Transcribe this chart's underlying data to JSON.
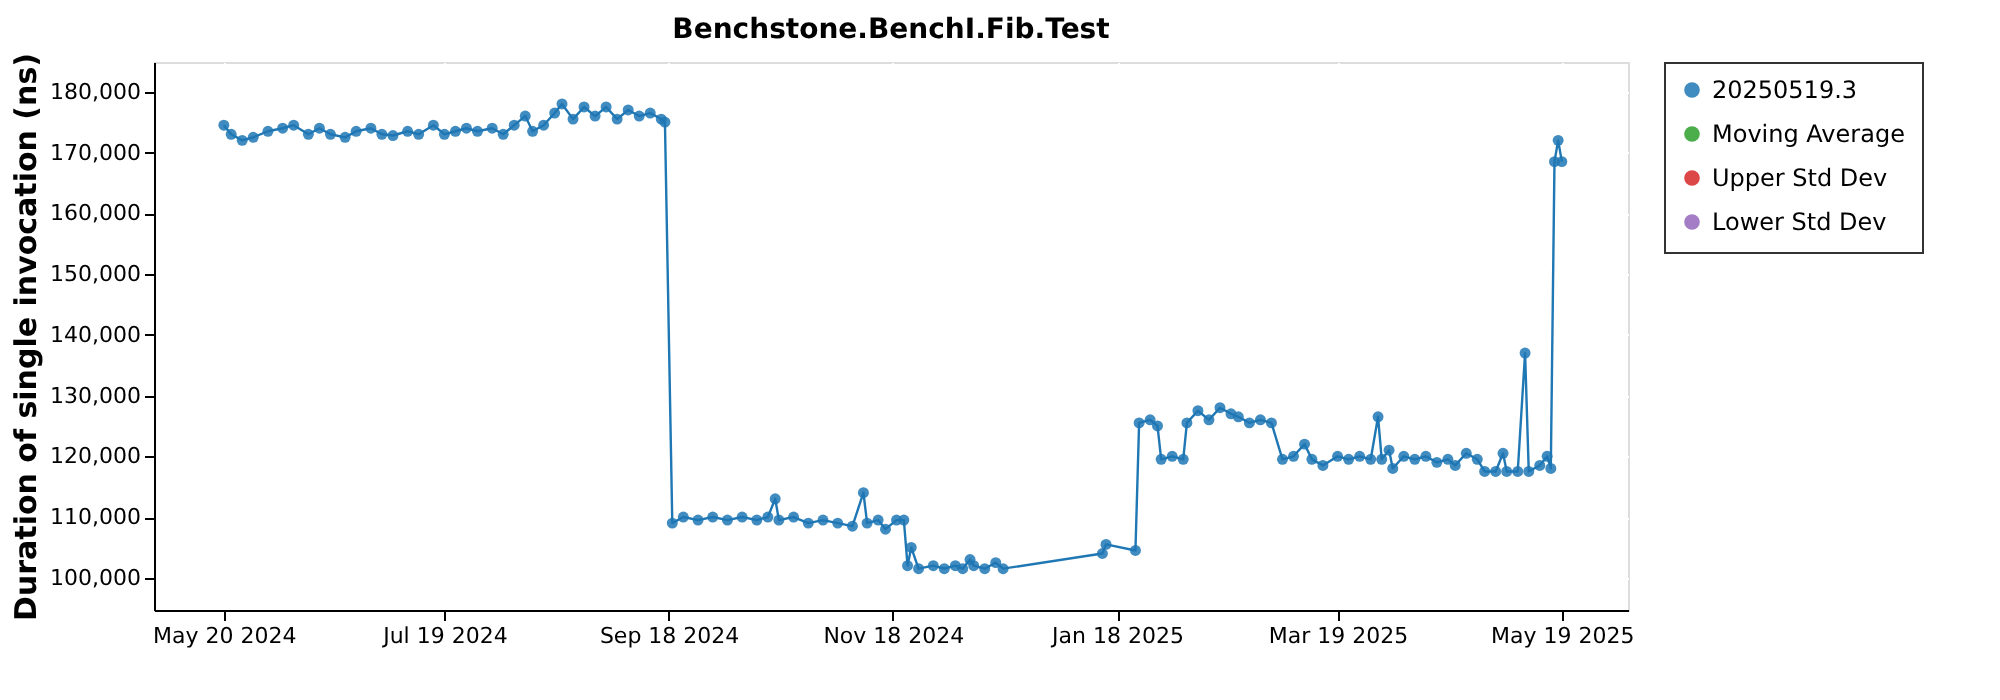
{
  "chart_data": {
    "type": "line",
    "title": "Benchstone.BenchI.Fib.Test",
    "ylabel": "Duration of single invocation (ns)",
    "xlim": [
      "2024-05-01",
      "2025-06-06"
    ],
    "xticks": [
      {
        "value": "2024-05-20",
        "label": "May 20 2024"
      },
      {
        "value": "2024-07-19",
        "label": "Jul 19 2024"
      },
      {
        "value": "2024-09-18",
        "label": "Sep 18 2024"
      },
      {
        "value": "2024-11-18",
        "label": "Nov 18 2024"
      },
      {
        "value": "2025-01-18",
        "label": "Jan 18 2025"
      },
      {
        "value": "2025-03-19",
        "label": "Mar 19 2025"
      },
      {
        "value": "2025-05-19",
        "label": "May 19 2025"
      }
    ],
    "ylim": [
      94700,
      184900
    ],
    "yticks": [
      {
        "value": 100000,
        "label": "100,000"
      },
      {
        "value": 110000,
        "label": "110,000"
      },
      {
        "value": 120000,
        "label": "120,000"
      },
      {
        "value": 130000,
        "label": "130,000"
      },
      {
        "value": 140000,
        "label": "140,000"
      },
      {
        "value": 150000,
        "label": "150,000"
      },
      {
        "value": 160000,
        "label": "160,000"
      },
      {
        "value": 170000,
        "label": "170,000"
      },
      {
        "value": 180000,
        "label": "180,000"
      }
    ],
    "grid": true,
    "legend": "right",
    "marker": "circle",
    "line_style": "solid",
    "series": [
      {
        "name": "20250519.3",
        "color": "#1f77b4",
        "x": [
          "2024-05-20",
          "2024-05-22",
          "2024-05-25",
          "2024-05-28",
          "2024-06-01",
          "2024-06-05",
          "2024-06-08",
          "2024-06-12",
          "2024-06-15",
          "2024-06-18",
          "2024-06-22",
          "2024-06-25",
          "2024-06-29",
          "2024-07-02",
          "2024-07-05",
          "2024-07-09",
          "2024-07-12",
          "2024-07-16",
          "2024-07-19",
          "2024-07-22",
          "2024-07-25",
          "2024-07-28",
          "2024-08-01",
          "2024-08-04",
          "2024-08-07",
          "2024-08-10",
          "2024-08-12",
          "2024-08-15",
          "2024-08-18",
          "2024-08-20",
          "2024-08-23",
          "2024-08-26",
          "2024-08-29",
          "2024-09-01",
          "2024-09-04",
          "2024-09-07",
          "2024-09-10",
          "2024-09-13",
          "2024-09-16",
          "2024-09-17",
          "2024-09-19",
          "2024-09-22",
          "2024-09-26",
          "2024-09-30",
          "2024-10-04",
          "2024-10-08",
          "2024-10-12",
          "2024-10-15",
          "2024-10-17",
          "2024-10-18",
          "2024-10-22",
          "2024-10-26",
          "2024-10-30",
          "2024-11-03",
          "2024-11-07",
          "2024-11-10",
          "2024-11-11",
          "2024-11-14",
          "2024-11-16",
          "2024-11-19",
          "2024-11-21",
          "2024-11-22",
          "2024-11-23",
          "2024-11-25",
          "2024-11-29",
          "2024-12-02",
          "2024-12-05",
          "2024-12-07",
          "2024-12-09",
          "2024-12-10",
          "2024-12-13",
          "2024-12-16",
          "2024-12-18",
          "2025-01-14",
          "2025-01-15",
          "2025-01-23",
          "2025-01-24",
          "2025-01-27",
          "2025-01-29",
          "2025-01-30",
          "2025-02-02",
          "2025-02-05",
          "2025-02-06",
          "2025-02-09",
          "2025-02-12",
          "2025-02-15",
          "2025-02-18",
          "2025-02-20",
          "2025-02-23",
          "2025-02-26",
          "2025-03-01",
          "2025-03-04",
          "2025-03-07",
          "2025-03-10",
          "2025-03-12",
          "2025-03-15",
          "2025-03-19",
          "2025-03-22",
          "2025-03-25",
          "2025-03-28",
          "2025-03-30",
          "2025-03-31",
          "2025-04-02",
          "2025-04-03",
          "2025-04-06",
          "2025-04-09",
          "2025-04-12",
          "2025-04-15",
          "2025-04-18",
          "2025-04-20",
          "2025-04-23",
          "2025-04-26",
          "2025-04-28",
          "2025-05-01",
          "2025-05-03",
          "2025-05-04",
          "2025-05-07",
          "2025-05-09",
          "2025-05-10",
          "2025-05-13",
          "2025-05-15",
          "2025-05-16",
          "2025-05-17",
          "2025-05-18",
          "2025-05-19"
        ],
        "values": [
          174500,
          173000,
          172000,
          172500,
          173500,
          174000,
          174500,
          173000,
          174000,
          173000,
          172500,
          173500,
          174000,
          173000,
          172800,
          173500,
          173000,
          174500,
          173000,
          173500,
          174000,
          173500,
          174000,
          173000,
          174500,
          176000,
          173500,
          174500,
          176500,
          178000,
          175500,
          177500,
          176000,
          177500,
          175500,
          177000,
          176000,
          176500,
          175500,
          175000,
          109000,
          110000,
          109500,
          110000,
          109500,
          110000,
          109500,
          110000,
          113000,
          109500,
          110000,
          109000,
          109500,
          109000,
          108500,
          114000,
          109000,
          109500,
          108000,
          109500,
          109500,
          102000,
          105000,
          101500,
          102000,
          101500,
          102000,
          101500,
          103000,
          102000,
          101500,
          102500,
          101500,
          104000,
          105500,
          104500,
          125500,
          126000,
          125000,
          119500,
          120000,
          119500,
          125500,
          127500,
          126000,
          128000,
          127000,
          126500,
          125500,
          126000,
          125500,
          119500,
          120000,
          122000,
          119500,
          118500,
          120000,
          119500,
          120000,
          119500,
          126500,
          119500,
          121000,
          118000,
          120000,
          119500,
          120000,
          119000,
          119500,
          118500,
          120500,
          119500,
          117500,
          117500,
          120500,
          117500,
          117500,
          137000,
          117500,
          118500,
          120000,
          118000,
          168500,
          172000,
          168500
        ]
      },
      {
        "name": "Moving Average",
        "color": "#2ca02c"
      },
      {
        "name": "Upper Std Dev",
        "color": "#d62728"
      },
      {
        "name": "Lower Std Dev",
        "color": "#9467bd"
      }
    ]
  }
}
